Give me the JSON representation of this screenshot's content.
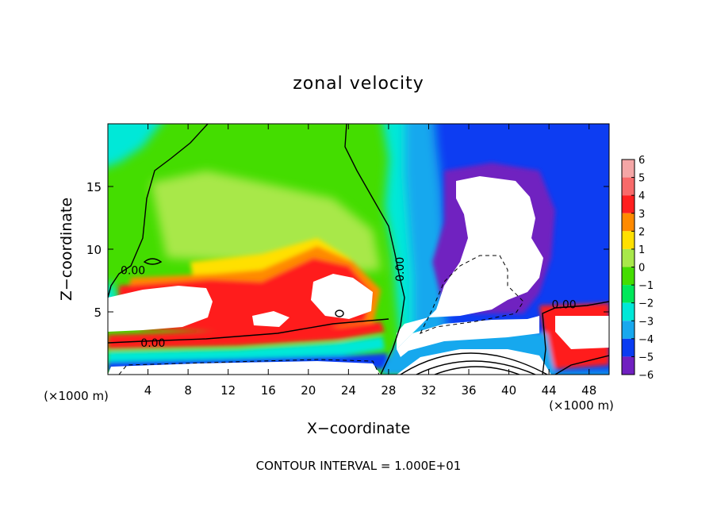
{
  "chart_data": {
    "type": "heatmap",
    "title": "zonal velocity",
    "xlabel": "X−coordinate",
    "ylabel": "Z−coordinate",
    "x_unit_left": "(×1000 m)",
    "x_unit_right": "(×1000 m)",
    "footer": "CONTOUR INTERVAL = 1.000E+01",
    "xlim": [
      0,
      50
    ],
    "ylim": [
      0,
      20
    ],
    "x_ticks": [
      4,
      8,
      12,
      16,
      20,
      24,
      28,
      32,
      36,
      40,
      44,
      48
    ],
    "y_ticks": [
      5,
      10,
      15
    ],
    "colorbar": {
      "ticks": [
        6,
        5,
        4,
        3,
        2,
        1,
        0,
        -1,
        -2,
        -3,
        -4,
        -5,
        -6
      ],
      "range": [
        -6,
        6
      ],
      "levels": [
        {
          "value": 5.5,
          "color": "#f4a6a6"
        },
        {
          "value": 4.5,
          "color": "#f86a6a"
        },
        {
          "value": 3.5,
          "color": "#ff1f1f"
        },
        {
          "value": 2.5,
          "color": "#ff8a00"
        },
        {
          "value": 1.5,
          "color": "#ffe000"
        },
        {
          "value": 0.5,
          "color": "#a8e84a"
        },
        {
          "value": -0.5,
          "color": "#44dd00"
        },
        {
          "value": -1.5,
          "color": "#00e85a"
        },
        {
          "value": -2.5,
          "color": "#00e8d8"
        },
        {
          "value": -3.5,
          "color": "#18a8ee"
        },
        {
          "value": -4.5,
          "color": "#0a3cf2"
        },
        {
          "value": -5.5,
          "color": "#7020c0"
        }
      ]
    },
    "contour_labels": [
      {
        "text": "0.00",
        "x": 2.5,
        "z": 8.0
      },
      {
        "text": "0.00",
        "x": 4.5,
        "z": 2.2
      },
      {
        "text": "0.00",
        "x": 29.5,
        "z": 8.4
      },
      {
        "text": "0.00",
        "x": 45.5,
        "z": 5.3
      }
    ]
  }
}
